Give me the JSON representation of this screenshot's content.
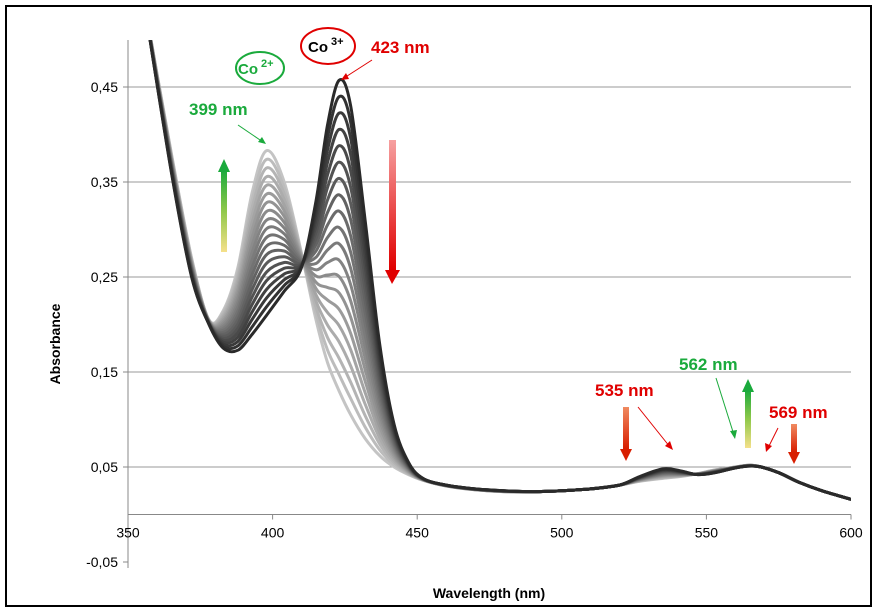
{
  "chart_data": {
    "type": "line",
    "xlabel": "Wavelength (nm)",
    "ylabel": "Absorbance",
    "xlim": [
      350,
      600
    ],
    "ylim": [
      -0.05,
      0.5
    ],
    "x_ticks": [
      350,
      400,
      450,
      500,
      550,
      600
    ],
    "x_tick_labels": [
      "350",
      "400",
      "450",
      "500",
      "550",
      "600"
    ],
    "y_ticks": [
      -0.05,
      0.05,
      0.15,
      0.25,
      0.35,
      0.45
    ],
    "y_tick_labels": [
      "-0,05",
      "0,05",
      "0,15",
      "0,25",
      "0,35",
      "0,45"
    ],
    "grid": "horizontal",
    "series_count": 20,
    "series_color_range": [
      "#2a2a2a",
      "#c4c4c4"
    ],
    "series_start": {
      "x": [
        355,
        365,
        372,
        378,
        383,
        388,
        393,
        398,
        404,
        410,
        415,
        419,
        423,
        427,
        432,
        437,
        442,
        447,
        452,
        460,
        470,
        480,
        490,
        500,
        510,
        520,
        527,
        535,
        541,
        547,
        553,
        560,
        565,
        569,
        575,
        582,
        590,
        600
      ],
      "y": [
        0.55,
        0.36,
        0.25,
        0.2,
        0.175,
        0.173,
        0.19,
        0.21,
        0.235,
        0.26,
        0.33,
        0.41,
        0.457,
        0.43,
        0.31,
        0.18,
        0.095,
        0.055,
        0.038,
        0.031,
        0.027,
        0.025,
        0.024,
        0.025,
        0.027,
        0.031,
        0.04,
        0.048,
        0.046,
        0.042,
        0.044,
        0.049,
        0.051,
        0.05,
        0.044,
        0.034,
        0.025,
        0.016
      ]
    },
    "series_end": {
      "x": [
        355,
        365,
        372,
        378,
        383,
        388,
        393,
        398,
        404,
        410,
        415,
        419,
        423,
        427,
        432,
        437,
        442,
        447,
        452,
        460,
        470,
        480,
        490,
        500,
        510,
        520,
        527,
        535,
        541,
        547,
        553,
        560,
        565,
        569,
        575,
        582,
        590,
        600
      ],
      "y": [
        0.55,
        0.38,
        0.27,
        0.205,
        0.215,
        0.26,
        0.34,
        0.383,
        0.35,
        0.275,
        0.205,
        0.16,
        0.13,
        0.105,
        0.08,
        0.062,
        0.05,
        0.042,
        0.036,
        0.03,
        0.026,
        0.024,
        0.024,
        0.025,
        0.027,
        0.031,
        0.035,
        0.038,
        0.04,
        0.043,
        0.047,
        0.05,
        0.052,
        0.05,
        0.044,
        0.034,
        0.025,
        0.016
      ]
    },
    "annotations": [
      {
        "text": "423 nm",
        "color": "#e00000",
        "x": 423,
        "y": 0.457
      },
      {
        "text": "399 nm",
        "color": "#1aaa3c",
        "x": 399,
        "y": 0.383
      },
      {
        "text": "535 nm",
        "color": "#e00000",
        "x": 537,
        "y": 0.047
      },
      {
        "text": "562 nm",
        "color": "#1aaa3c",
        "x": 562,
        "y": 0.05
      },
      {
        "text": "569 nm",
        "color": "#e00000",
        "x": 569,
        "y": 0.05
      }
    ],
    "species_labels": [
      {
        "base": "Co",
        "charge": "2+",
        "color": "#1aaa3c"
      },
      {
        "base": "Co",
        "charge": "3+",
        "color": "#e00000"
      }
    ],
    "trend_arrows": [
      {
        "direction": "up",
        "color": "#1aaa3c",
        "x": 384
      },
      {
        "direction": "down",
        "color": "#e00000",
        "x": 441
      },
      {
        "direction": "down",
        "color": "#e00000",
        "x": 521
      },
      {
        "direction": "up",
        "color": "#1aaa3c",
        "x": 563
      },
      {
        "direction": "down",
        "color": "#e00000",
        "x": 580
      }
    ]
  }
}
